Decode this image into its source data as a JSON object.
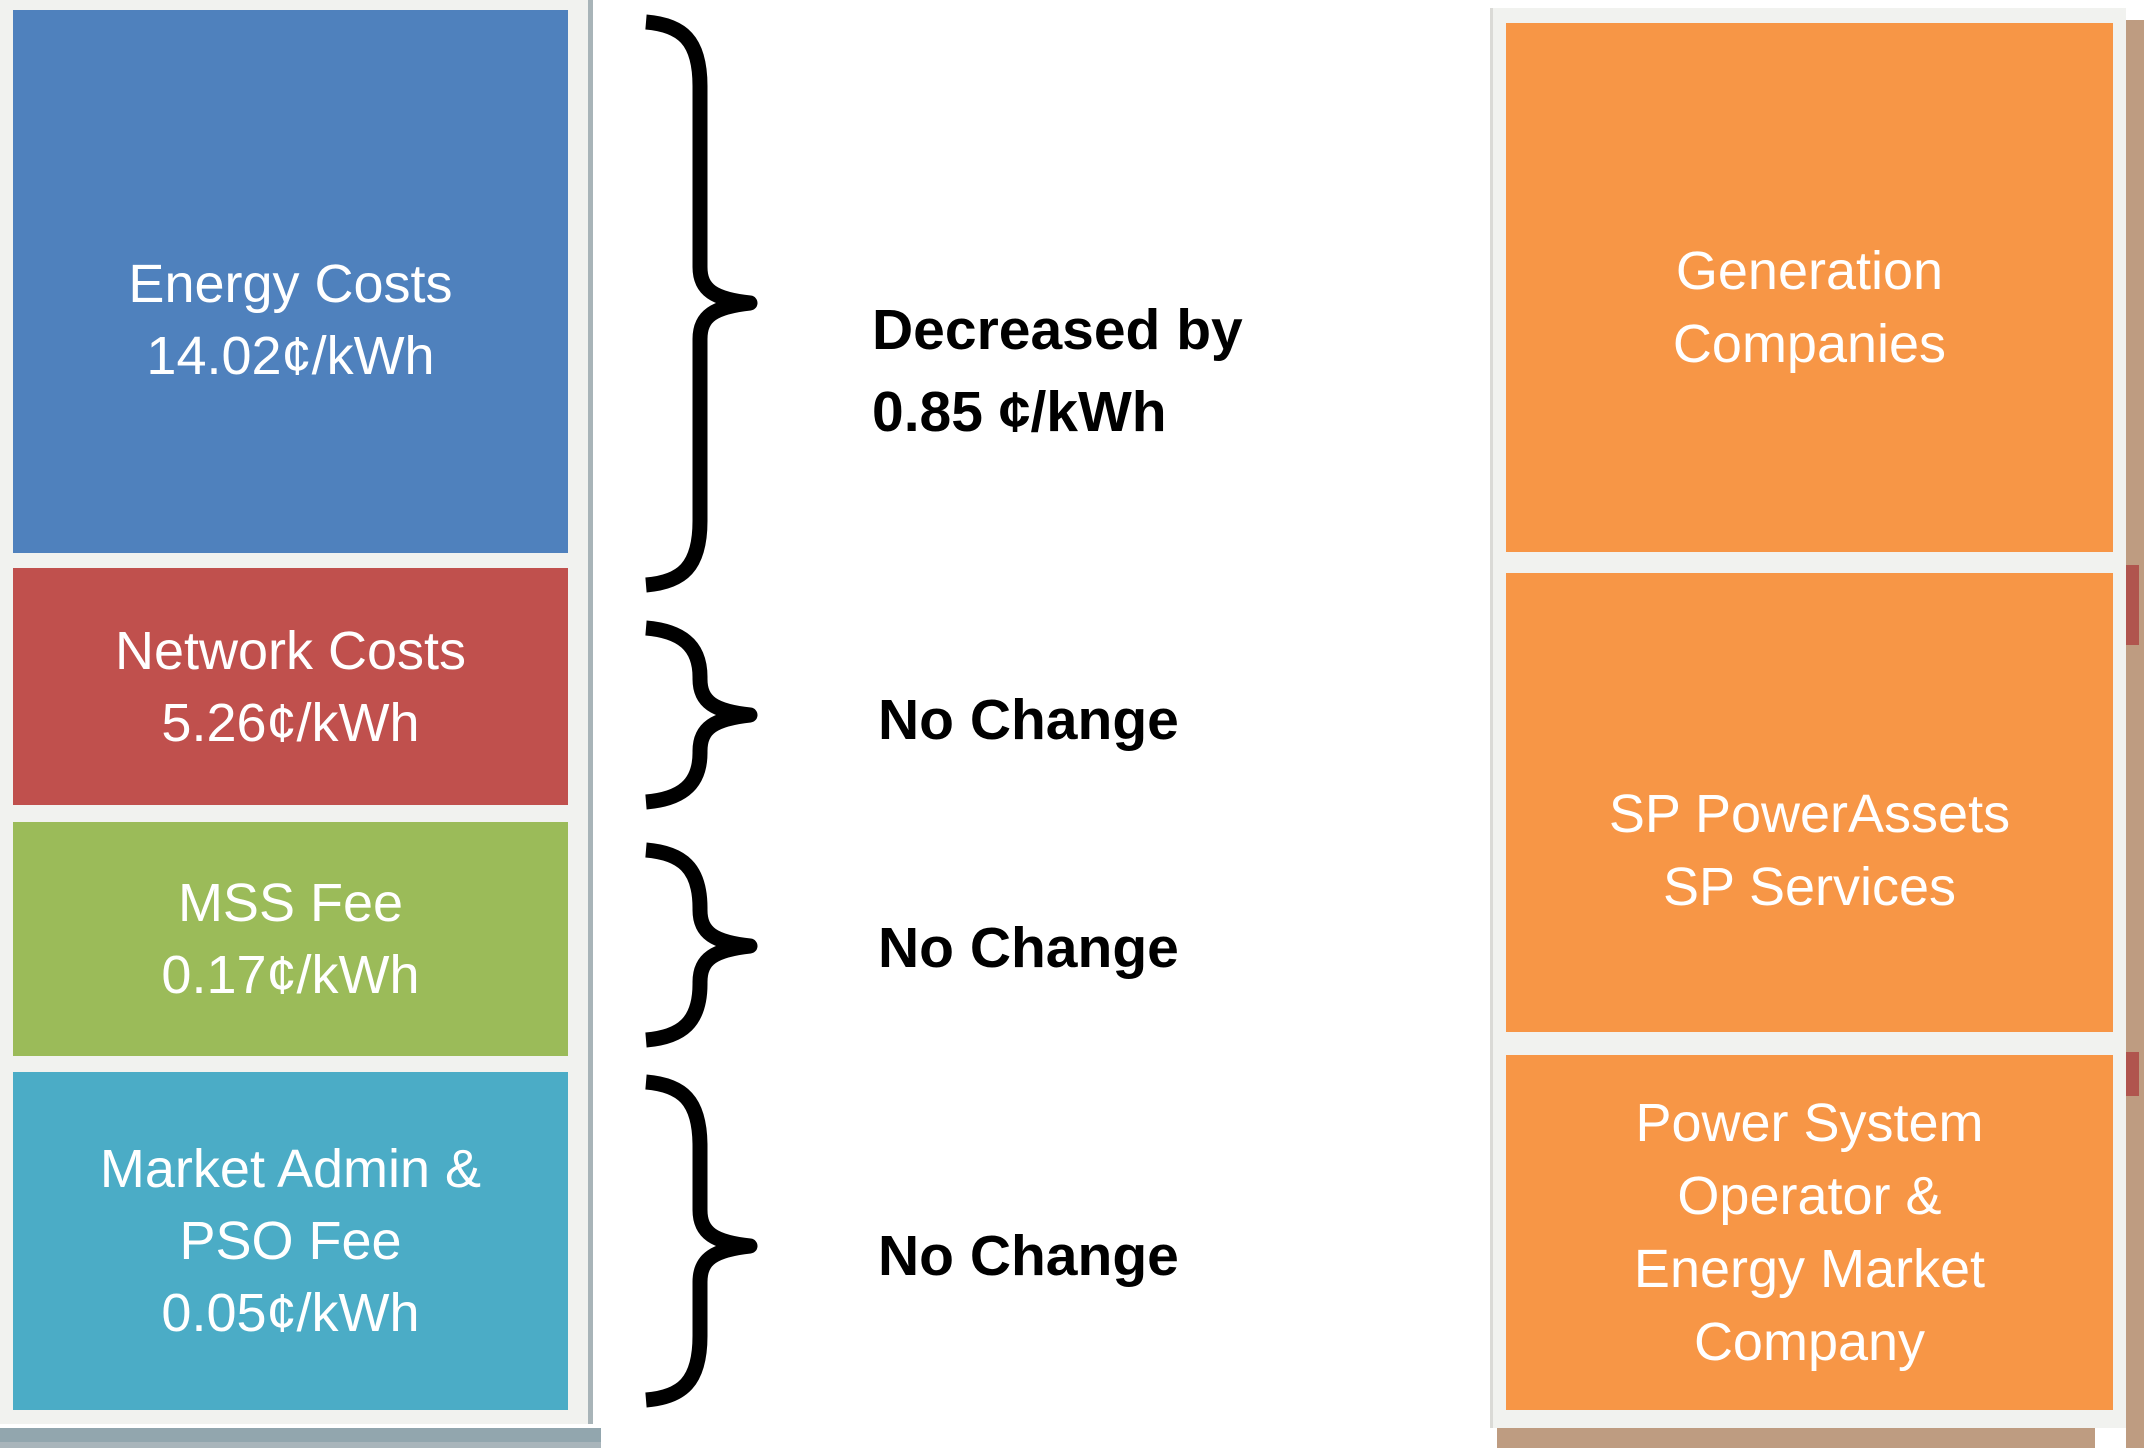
{
  "left_stack": {
    "blocks": [
      {
        "id": "energy-costs",
        "color": "#4F81BD",
        "lines": [
          "Energy Costs",
          "14.02¢/kWh"
        ]
      },
      {
        "id": "network-costs",
        "color": "#C0504D",
        "lines": [
          "Network Costs",
          "5.26¢/kWh"
        ]
      },
      {
        "id": "mss-fee",
        "color": "#9BBB59",
        "lines": [
          "MSS Fee",
          "0.17¢/kWh"
        ]
      },
      {
        "id": "market-admin-pso-fee",
        "color": "#4BACC6",
        "lines": [
          "Market Admin &",
          "PSO Fee",
          "0.05¢/kWh"
        ]
      }
    ]
  },
  "annotations": {
    "energy": {
      "lines": [
        "Decreased by",
        "0.85 ¢/kWh"
      ]
    },
    "network": {
      "text": "No Change"
    },
    "mss": {
      "text": "No Change"
    },
    "market_admin": {
      "text": "No Change"
    }
  },
  "right_stack": {
    "color": "#F79646",
    "blocks": [
      {
        "id": "generation-companies",
        "lines": [
          "Generation",
          "Companies"
        ]
      },
      {
        "id": "sp-powerassets-sp-services",
        "lines": [
          "SP PowerAssets",
          "SP Services"
        ]
      },
      {
        "id": "power-system-operator-energy-market-company",
        "lines": [
          "Power System",
          "Operator &",
          "Energy Market",
          "Company"
        ]
      }
    ]
  },
  "decorations": {
    "brace_color": "#000000",
    "left_panel_color": "#F1F2EF",
    "left_bottom_bar_color": "#92A6AE",
    "right_bottom_bar_color": "#BE9C81",
    "right_edge_strip_color": "#BE9C81",
    "right_edge_fragment_color": "#B0554E"
  }
}
